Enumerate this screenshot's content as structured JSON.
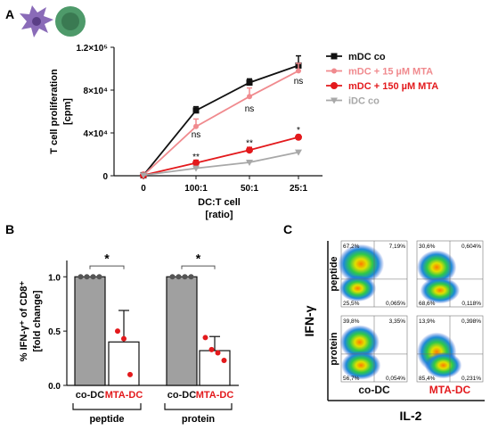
{
  "colors": {
    "black": "#111111",
    "pink": "#f08a8e",
    "red": "#e3191c",
    "grey": "#a8a8a8",
    "bar_grey": "#a0a0a0",
    "cell_purple": "#8a6bb8",
    "cell_green": "#4e9a6a"
  },
  "panels": {
    "a": "A",
    "b": "B",
    "c": "C"
  },
  "icons": [
    "dendritic-cell-icon",
    "t-cell-icon"
  ],
  "chart_data": [
    {
      "type": "line",
      "panel": "A",
      "ylabel_line1": "T cell proliferation",
      "ylabel_line2": "[cpm]",
      "xlabel_line1": "DC:T cell",
      "xlabel_line2": "[ratio]",
      "categories": [
        "0",
        "100:1",
        "50:1",
        "25:1"
      ],
      "ylim": [
        0,
        120000
      ],
      "yticks": [
        {
          "v": 0,
          "label": "0"
        },
        {
          "v": 40000,
          "label": "4×10⁴"
        },
        {
          "v": 80000,
          "label": "8×10⁴"
        },
        {
          "v": 120000,
          "label": "1.2×10⁵"
        }
      ],
      "legend_position": "right",
      "series": [
        {
          "name": "mDC co",
          "color": "#111111",
          "marker": "square",
          "values": [
            500,
            61000,
            87000,
            103000
          ],
          "err": [
            0,
            3500,
            3500,
            9000
          ]
        },
        {
          "name": "mDC + 15 µM  MTA",
          "color": "#f08a8e",
          "marker": "circle-small",
          "values": [
            500,
            46000,
            74000,
            98000
          ],
          "err": [
            0,
            7000,
            8000,
            7000
          ]
        },
        {
          "name": "mDC + 150 µM  MTA",
          "color": "#e3191c",
          "marker": "circle",
          "values": [
            500,
            12000,
            24000,
            36000
          ],
          "err": [
            0,
            2500,
            2500,
            2000
          ]
        },
        {
          "name": "iDC co",
          "color": "#a8a8a8",
          "marker": "triangle-down",
          "values": [
            500,
            7000,
            12500,
            22000
          ],
          "err": [
            0,
            1000,
            1000,
            1500
          ]
        }
      ],
      "annotations": [
        {
          "text": "ns",
          "x": 1,
          "y": 36000
        },
        {
          "text": "ns",
          "x": 2,
          "y": 60000
        },
        {
          "text": "ns",
          "x": 3,
          "y": 86000
        },
        {
          "text": "**",
          "x": 1,
          "y": 15000
        },
        {
          "text": "**",
          "x": 2,
          "y": 28000
        },
        {
          "text": "*",
          "x": 3,
          "y": 40000
        }
      ]
    },
    {
      "type": "bar",
      "panel": "B",
      "ylabel_line1": "% IFN-γ⁺ of CD8⁺",
      "ylabel_line2": "[fold change]",
      "ylim": [
        0,
        1.15
      ],
      "yticks": [
        {
          "v": 0,
          "label": "0.0"
        },
        {
          "v": 0.5,
          "label": "0.5"
        },
        {
          "v": 1.0,
          "label": "1.0"
        }
      ],
      "groups": [
        {
          "label": "peptide",
          "sig": "*",
          "bars": [
            {
              "label": "co-DC",
              "value": 1.0,
              "err": 0,
              "fill": "grey",
              "points": [
                1.0,
                1.0,
                1.0,
                1.0
              ]
            },
            {
              "label": "MTA-DC",
              "value": 0.4,
              "err": 0.29,
              "fill": "white",
              "points": [
                0.5,
                0.43,
                0.1
              ]
            }
          ]
        },
        {
          "label": "protein",
          "sig": "*",
          "bars": [
            {
              "label": "co-DC",
              "value": 1.0,
              "err": 0,
              "fill": "grey",
              "points": [
                1.0,
                1.0,
                1.0,
                1.0
              ]
            },
            {
              "label": "MTA-DC",
              "value": 0.32,
              "err": 0.13,
              "fill": "white",
              "points": [
                0.44,
                0.33,
                0.3,
                0.23
              ]
            }
          ]
        }
      ]
    },
    {
      "type": "scatter",
      "panel": "C",
      "xlabel": "IL-2",
      "ylabel": "IFN-γ",
      "row_labels": [
        "peptide",
        "protein"
      ],
      "col_labels": [
        "co-DC",
        "MTA-DC"
      ],
      "quadrant_values": [
        [
          {
            "tl": "67,2%",
            "tr": "7,19%",
            "bl": "25,5%",
            "br": "0,065%"
          },
          {
            "tl": "30,6%",
            "tr": "0,604%",
            "bl": "68,6%",
            "br": "0,118%"
          }
        ],
        [
          {
            "tl": "39,8%",
            "tr": "3,35%",
            "bl": "56,7%",
            "br": "0,054%"
          },
          {
            "tl": "13,9%",
            "tr": "0,398%",
            "bl": "85,4%",
            "br": "0,231%"
          }
        ]
      ]
    }
  ]
}
